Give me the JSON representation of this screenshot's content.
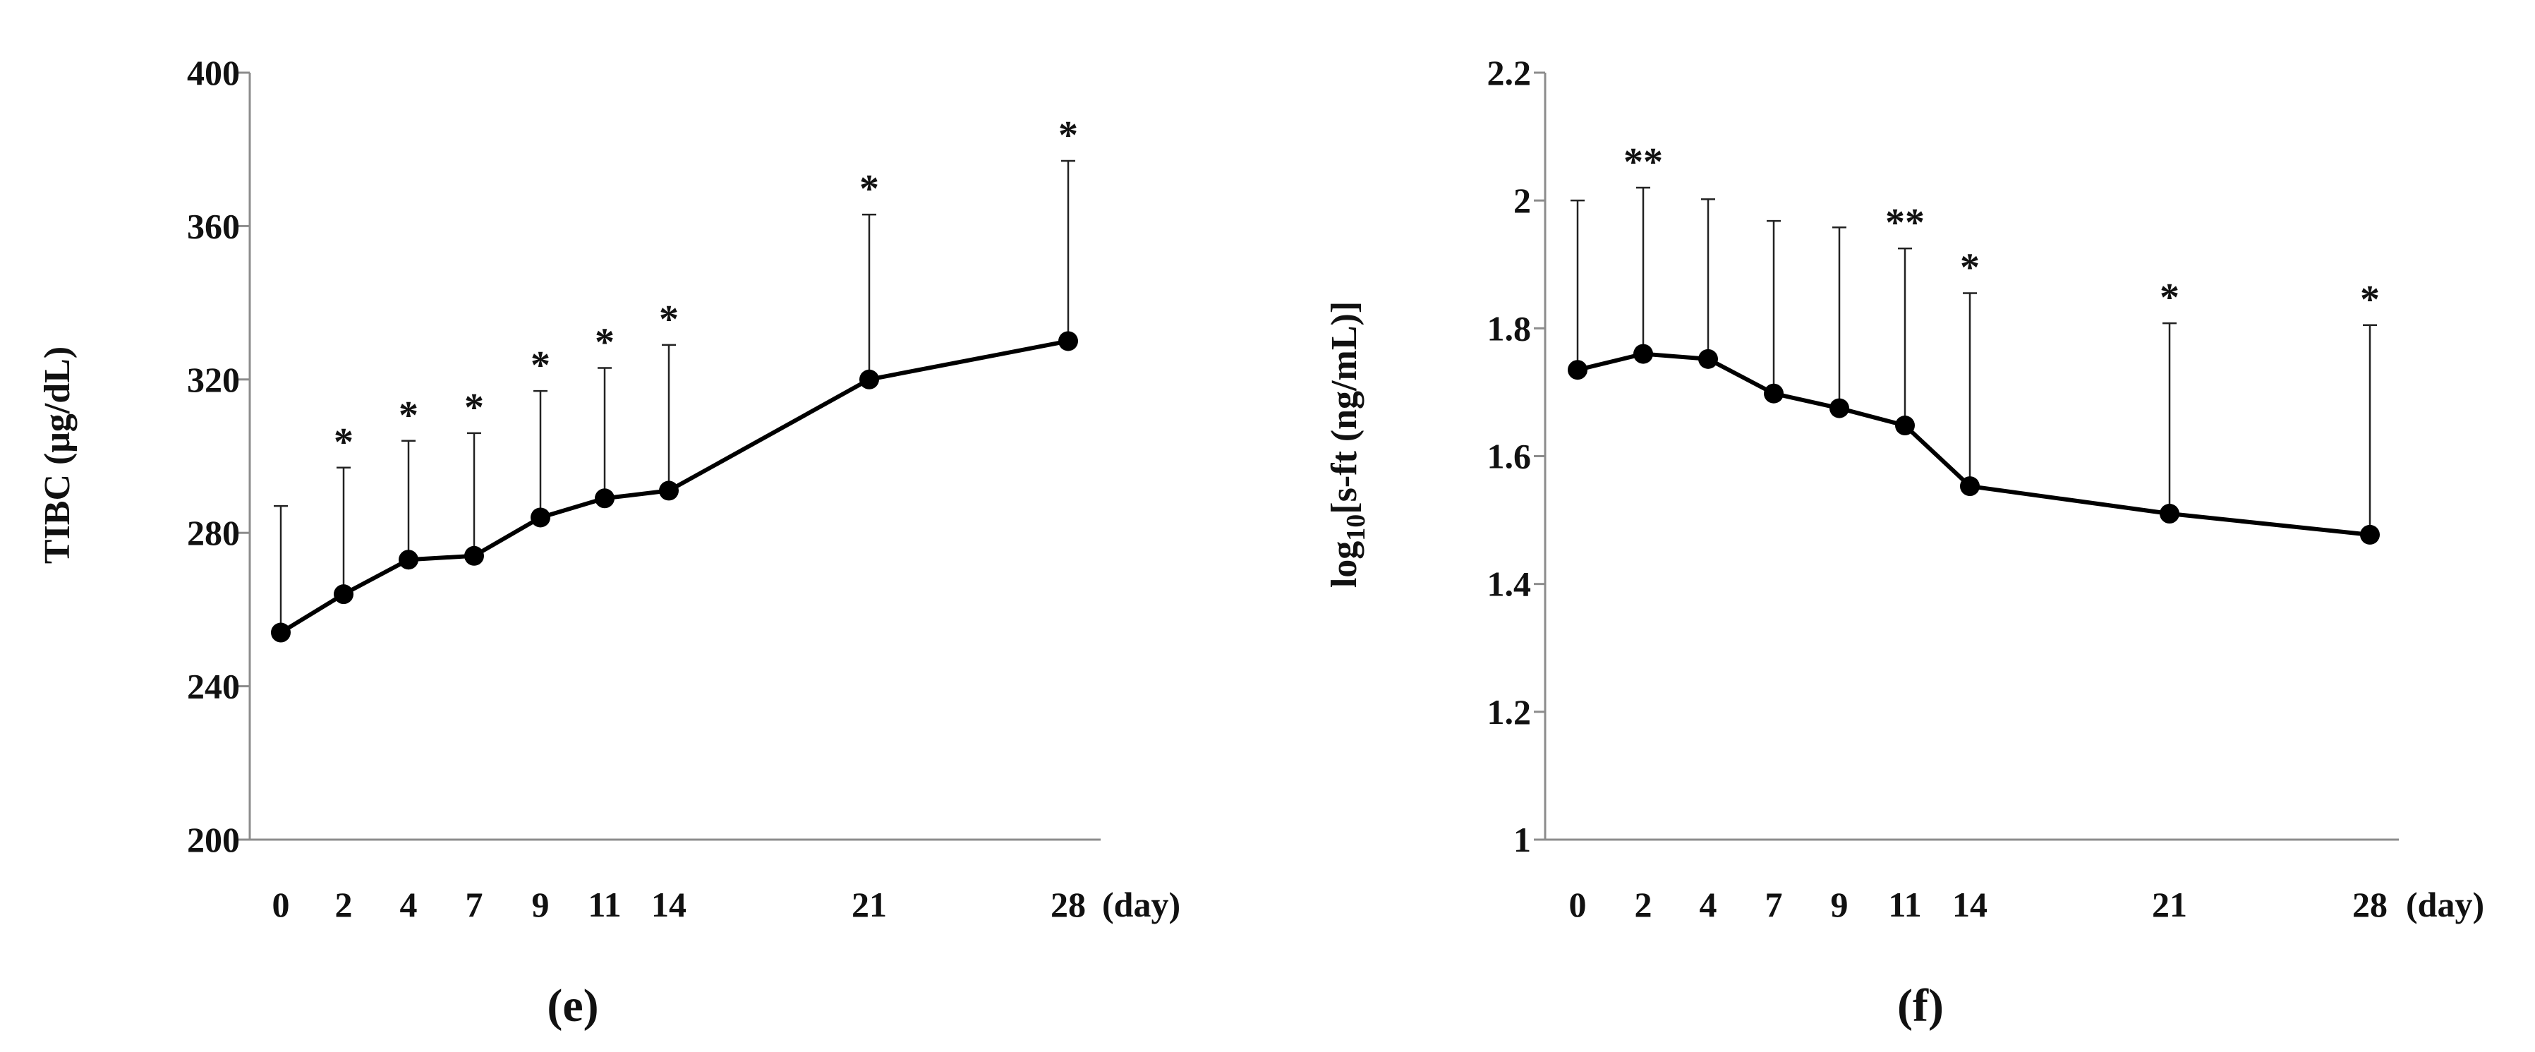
{
  "chart_data": [
    {
      "type": "line",
      "panel_label": "(e)",
      "ylabel": "TIBC (μg/dL)",
      "xunit": "(day)",
      "x": [
        0,
        2,
        4,
        7,
        9,
        11,
        14,
        21,
        28
      ],
      "x_tick_labels": [
        "0",
        "2",
        "4",
        "7",
        "9",
        "11",
        "14",
        "21",
        "28"
      ],
      "values": [
        254,
        264,
        273,
        274,
        284,
        289,
        291,
        320,
        330
      ],
      "error_upper": [
        287,
        297,
        304,
        306,
        317,
        323,
        329,
        363,
        377
      ],
      "significance": [
        "",
        "*",
        "*",
        "*",
        "*",
        "*",
        "*",
        "*",
        "*"
      ],
      "ylim": [
        200,
        400
      ],
      "y_ticks": [
        200,
        240,
        280,
        320,
        360,
        400
      ],
      "y_tick_labels": [
        "200",
        "240",
        "280",
        "320",
        "360",
        "400"
      ]
    },
    {
      "type": "line",
      "panel_label": "(f)",
      "ylabel_main": "log",
      "ylabel_sub": "10",
      "ylabel_rest": "[s-ft (ng/mL)]",
      "xunit": "(day)",
      "x": [
        0,
        2,
        4,
        7,
        9,
        11,
        14,
        21,
        28
      ],
      "x_tick_labels": [
        "0",
        "2",
        "4",
        "7",
        "9",
        "11",
        "14",
        "21",
        "28"
      ],
      "values": [
        1.735,
        1.76,
        1.752,
        1.698,
        1.675,
        1.648,
        1.553,
        1.51,
        1.477
      ],
      "error_upper": [
        2.0,
        2.02,
        2.002,
        1.968,
        1.958,
        1.925,
        1.855,
        1.808,
        1.805
      ],
      "significance": [
        "",
        "**",
        "",
        "",
        "",
        "**",
        "*",
        "*",
        "*"
      ],
      "ylim": [
        1,
        2.2
      ],
      "y_ticks": [
        1,
        1.2,
        1.4,
        1.6,
        1.8,
        2.0,
        2.2
      ],
      "y_tick_labels": [
        "1",
        "1.2",
        "1.4",
        "1.6",
        "1.8",
        "2",
        "2.2"
      ]
    }
  ]
}
